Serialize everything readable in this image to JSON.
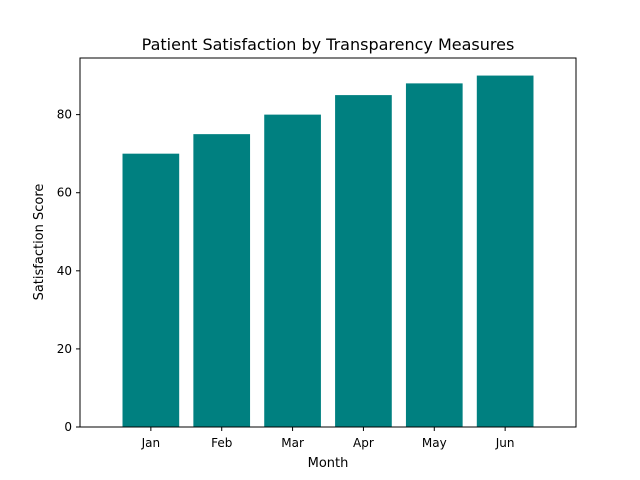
{
  "chart_data": {
    "type": "bar",
    "title": "Patient Satisfaction by Transparency Measures",
    "xlabel": "Month",
    "ylabel": "Satisfaction Score",
    "categories": [
      "Jan",
      "Feb",
      "Mar",
      "Apr",
      "May",
      "Jun"
    ],
    "values": [
      70,
      75,
      80,
      85,
      88,
      90
    ],
    "ylim": [
      0,
      94.5
    ],
    "yticks": [
      0,
      20,
      40,
      60,
      80
    ],
    "bar_color": "#008080",
    "grid": false,
    "legend": "none"
  }
}
